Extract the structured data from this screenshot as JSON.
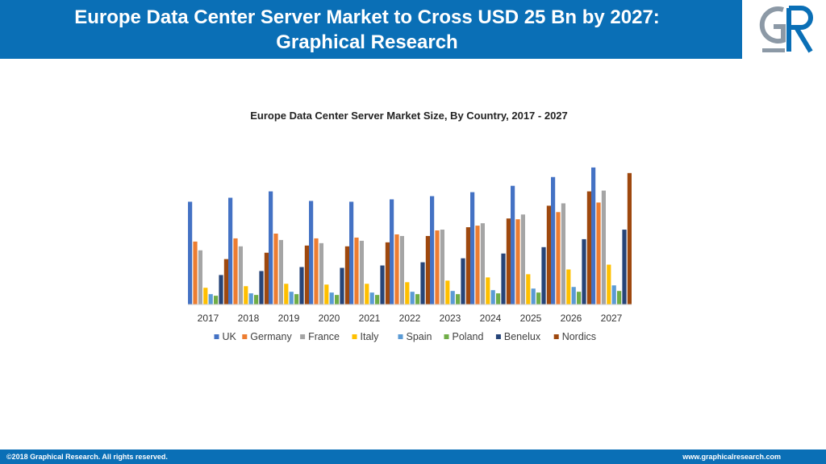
{
  "header": {
    "title_line1": "Europe Data Center Server Market to Cross USD 25 Bn by 2027:",
    "title_line2": "Graphical Research"
  },
  "colors": {
    "brand_blue": "#0a6fb6",
    "logo_gray": "#8c99a6"
  },
  "logo": {
    "icon": "graphical-research-logo-icon"
  },
  "footer": {
    "copyright": "©2018 Graphical Research. All rights reserved.",
    "website": "www.graphicalresearch.com"
  },
  "chart_data": {
    "type": "bar",
    "title": "Europe Data Center Server Market Size, By Country, 2017  - 2027",
    "xlabel": "",
    "ylabel": "",
    "categories": [
      "2017",
      "2018",
      "2019",
      "2020",
      "2021",
      "2022",
      "2023",
      "2024",
      "2025",
      "2026",
      "2027"
    ],
    "ylim": [
      0,
      180
    ],
    "grid": false,
    "legend_position": "bottom",
    "series": [
      {
        "name": "UK",
        "color": "#4472c4",
        "values": [
          129,
          134,
          142,
          130,
          129,
          132,
          136,
          141,
          149,
          160,
          172
        ]
      },
      {
        "name": "Germany",
        "color": "#ed7d31",
        "values": [
          79,
          83,
          89,
          83,
          84,
          88,
          93,
          99,
          107,
          116,
          128
        ]
      },
      {
        "name": "France",
        "color": "#a5a5a5",
        "values": [
          68,
          73,
          81,
          77,
          80,
          86,
          94,
          102,
          113,
          127,
          143
        ]
      },
      {
        "name": "Italy",
        "color": "#ffc000",
        "values": [
          21,
          23,
          26,
          25,
          26,
          28,
          30,
          34,
          38,
          44,
          50
        ]
      },
      {
        "name": "Spain",
        "color": "#5b9bd5",
        "values": [
          13,
          14,
          16,
          15,
          15,
          16,
          17,
          18,
          20,
          22,
          24
        ]
      },
      {
        "name": "Poland",
        "color": "#70ad47",
        "values": [
          11,
          12,
          13,
          12,
          12,
          13,
          13,
          14,
          15,
          16,
          17
        ]
      },
      {
        "name": "Benelux",
        "color": "#264478",
        "values": [
          37,
          42,
          47,
          46,
          49,
          53,
          58,
          64,
          72,
          82,
          94
        ]
      },
      {
        "name": "Nordics",
        "color": "#9e480e",
        "values": [
          57,
          65,
          74,
          73,
          78,
          86,
          97,
          108,
          124,
          142,
          165
        ]
      }
    ]
  }
}
